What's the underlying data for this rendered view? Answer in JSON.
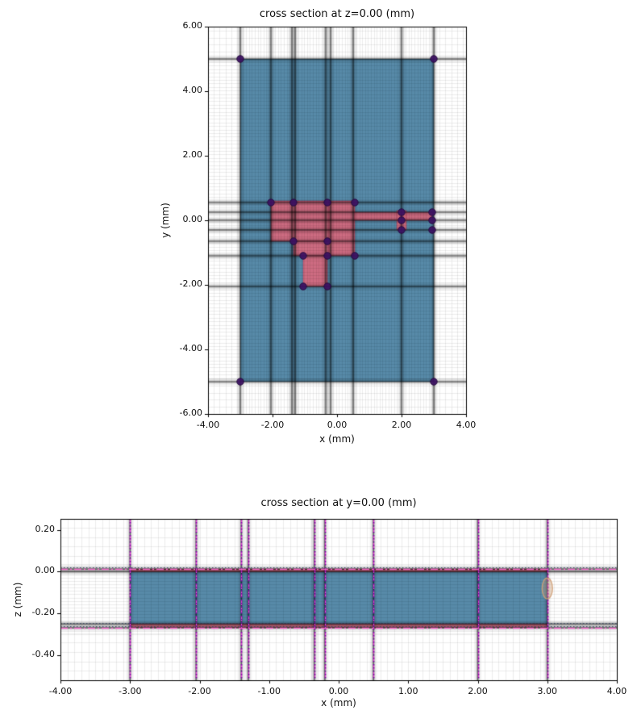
{
  "page": {
    "background": "#ffffff"
  },
  "colors": {
    "structure_blue": "#4e84a3",
    "structure_pink": "#d4697e",
    "pink_edge": "#a03050",
    "vertex_fill": "#3d1163",
    "vertex_edge": "#260a40",
    "grid": "#000000",
    "override_magenta": "#e83bd3",
    "override_purple": "#7c0fa6",
    "override_pink_dash": "#f266c8",
    "dotted_blue": "#3a4a6b",
    "ellipse_tan": "#cf9e76"
  },
  "chart_data": [
    {
      "type": "mesh_cross_section",
      "title": "cross section at z=0.00 (mm)",
      "xlabel": "x (mm)",
      "ylabel": "y (mm)",
      "xlim": [
        -4,
        4
      ],
      "ylim": [
        -6,
        6
      ],
      "grid_on": true,
      "xticks": {
        "values": [
          -4,
          -2,
          0,
          2,
          4
        ],
        "labels": [
          "-4.00",
          "-2.00",
          "0.00",
          "2.00",
          "4.00"
        ]
      },
      "yticks": {
        "values": [
          6,
          4,
          2,
          0,
          -2,
          -4,
          -6
        ],
        "labels": [
          "6.00",
          "4.00",
          "2.00",
          "0.00",
          "-2.00",
          "-4.00",
          "-6.00"
        ]
      },
      "structures": [
        {
          "shape": "rect",
          "x": [
            -3,
            3
          ],
          "y": [
            -5,
            5
          ],
          "fill": "blue"
        },
        {
          "shape": "rect",
          "x": [
            -2.05,
            -0.25
          ],
          "y": [
            -0.65,
            0.6
          ],
          "fill": "pink"
        },
        {
          "shape": "rect",
          "x": [
            -1.35,
            -0.25
          ],
          "y": [
            -1.1,
            -0.65
          ],
          "fill": "pink"
        },
        {
          "shape": "rect",
          "x": [
            -1.05,
            -0.3
          ],
          "y": [
            -2.05,
            -1.1
          ],
          "fill": "pink"
        },
        {
          "shape": "rect",
          "x": [
            -0.25,
            0.55
          ],
          "y": [
            -1.1,
            0.6
          ],
          "fill": "pink"
        },
        {
          "shape": "rect",
          "x": [
            0.55,
            2.95
          ],
          "y": [
            0.0,
            0.25
          ],
          "fill": "pink"
        },
        {
          "shape": "rect",
          "x": [
            1.85,
            2.15
          ],
          "y": [
            -0.3,
            0.3
          ],
          "fill": "pink"
        }
      ],
      "mesh": {
        "fine_x_segments": [
          [
            -4,
            -3,
            0.18
          ],
          [
            -3,
            3,
            0.09
          ],
          [
            3,
            4,
            0.18
          ]
        ],
        "fine_y_segments": [
          [
            -6,
            -5,
            0.22
          ],
          [
            -5,
            5,
            0.11
          ],
          [
            5,
            6,
            0.22
          ]
        ],
        "major_x": [
          -3,
          -2.05,
          -1.4,
          -1.3,
          -0.35,
          -0.2,
          0.5,
          2.0,
          3.0
        ],
        "major_y": [
          5,
          0.55,
          0.25,
          0,
          -0.3,
          -0.65,
          -1.1,
          -2.05,
          -5
        ]
      },
      "vertices": [
        [
          -3,
          5
        ],
        [
          3,
          5
        ],
        [
          -3,
          -5
        ],
        [
          3,
          -5
        ],
        [
          -2.05,
          0.55
        ],
        [
          -1.35,
          0.55
        ],
        [
          -0.3,
          0.55
        ],
        [
          0.55,
          0.55
        ],
        [
          -1.35,
          -0.65
        ],
        [
          -0.3,
          -0.65
        ],
        [
          -1.05,
          -1.1
        ],
        [
          -0.3,
          -1.1
        ],
        [
          0.55,
          -1.1
        ],
        [
          -1.05,
          -2.05
        ],
        [
          -0.3,
          -2.05
        ],
        [
          2.0,
          0.25
        ],
        [
          2.95,
          0.25
        ],
        [
          2.0,
          0.0
        ],
        [
          2.95,
          0.0
        ],
        [
          2.0,
          -0.3
        ],
        [
          2.95,
          -0.3
        ]
      ]
    },
    {
      "type": "mesh_cross_section",
      "title": "cross section at y=0.00 (mm)",
      "xlabel": "x (mm)",
      "ylabel": "z (mm)",
      "xlim": [
        -4,
        4
      ],
      "ylim": [
        -0.52,
        0.253
      ],
      "grid_on": true,
      "xticks": {
        "values": [
          -4,
          -3,
          -2,
          -1,
          0,
          1,
          2,
          3,
          4
        ],
        "labels": [
          "-4.00",
          "-3.00",
          "-2.00",
          "-1.00",
          "0.00",
          "1.00",
          "2.00",
          "3.00",
          "4.00"
        ]
      },
      "yticks": {
        "values": [
          0.2,
          0,
          -0.2,
          -0.4
        ],
        "labels": [
          "0.20",
          "0.00",
          "-0.20",
          "-0.40"
        ]
      },
      "structures": [
        {
          "shape": "rect",
          "x": [
            -3,
            3
          ],
          "y": [
            -0.25,
            0
          ],
          "fill": "blue"
        },
        {
          "shape": "rect",
          "x": [
            -3,
            3
          ],
          "y": [
            0,
            0.013
          ],
          "fill": "pink"
        },
        {
          "shape": "rect",
          "x": [
            -3,
            3
          ],
          "y": [
            -0.268,
            -0.25
          ],
          "fill": "pink"
        }
      ],
      "mesh": {
        "fine_x_segments": [
          [
            -4,
            4,
            0.1
          ]
        ],
        "fine_y_segments": [
          [
            -0.52,
            -0.3,
            0.045
          ],
          [
            -0.3,
            0.03,
            0.016
          ],
          [
            0.03,
            0.253,
            0.045
          ]
        ],
        "major_x": [
          -3,
          -2.05,
          -1.4,
          -1.3,
          -0.35,
          -0.2,
          0.5,
          2.0,
          3.0
        ],
        "major_y": [
          0.013,
          0,
          -0.25,
          -0.268
        ]
      },
      "overrides": {
        "v_dashdot_x": [
          -3,
          -2.05,
          -1.4,
          -1.3,
          -0.35,
          -0.2,
          0.5,
          2.0,
          3.0
        ],
        "h_dashdot_y": [
          0.013,
          -0.268
        ],
        "h_dotted_y": [
          0.022,
          -0.245,
          -0.262
        ]
      },
      "vertices": [],
      "ellipse": {
        "cx": 3.0,
        "cy": -0.08,
        "rx": 0.075,
        "ry": 0.05
      }
    }
  ]
}
